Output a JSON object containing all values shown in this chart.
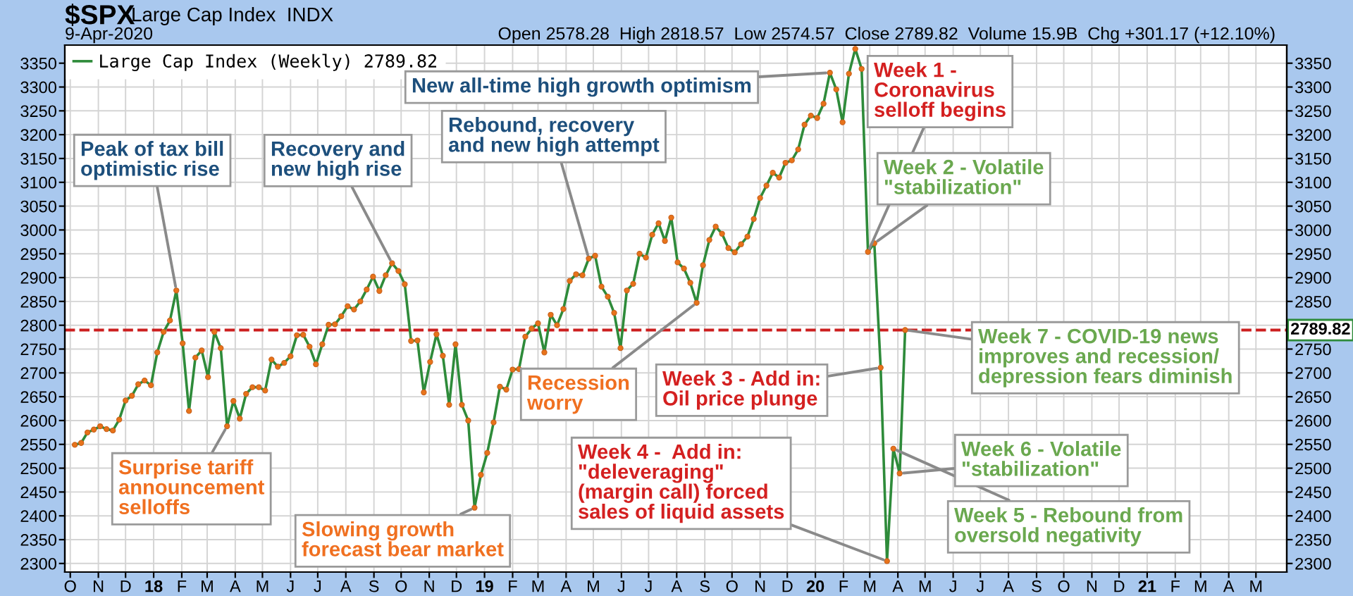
{
  "chart_data": {
    "type": "line",
    "title": "$SPX",
    "subtitle": "Large Cap Index  INDX",
    "x": [
      "2017-10-06",
      "2017-10-13",
      "2017-10-20",
      "2017-10-27",
      "2017-11-03",
      "2017-11-10",
      "2017-11-17",
      "2017-11-24",
      "2017-12-01",
      "2017-12-08",
      "2017-12-15",
      "2017-12-22",
      "2017-12-29",
      "2018-01-05",
      "2018-01-12",
      "2018-01-19",
      "2018-01-26",
      "2018-02-02",
      "2018-02-09",
      "2018-02-16",
      "2018-02-23",
      "2018-03-02",
      "2018-03-09",
      "2018-03-16",
      "2018-03-23",
      "2018-03-30",
      "2018-04-06",
      "2018-04-13",
      "2018-04-20",
      "2018-04-27",
      "2018-05-04",
      "2018-05-11",
      "2018-05-18",
      "2018-05-25",
      "2018-06-01",
      "2018-06-08",
      "2018-06-15",
      "2018-06-22",
      "2018-06-29",
      "2018-07-06",
      "2018-07-13",
      "2018-07-20",
      "2018-07-27",
      "2018-08-03",
      "2018-08-10",
      "2018-08-17",
      "2018-08-24",
      "2018-08-31",
      "2018-09-07",
      "2018-09-14",
      "2018-09-21",
      "2018-09-28",
      "2018-10-05",
      "2018-10-12",
      "2018-10-19",
      "2018-10-26",
      "2018-11-02",
      "2018-11-09",
      "2018-11-16",
      "2018-11-23",
      "2018-11-30",
      "2018-12-07",
      "2018-12-14",
      "2018-12-21",
      "2018-12-28",
      "2019-01-04",
      "2019-01-11",
      "2019-01-18",
      "2019-01-25",
      "2019-02-01",
      "2019-02-08",
      "2019-02-15",
      "2019-02-22",
      "2019-03-01",
      "2019-03-08",
      "2019-03-15",
      "2019-03-22",
      "2019-03-29",
      "2019-04-05",
      "2019-04-12",
      "2019-04-19",
      "2019-04-26",
      "2019-05-03",
      "2019-05-10",
      "2019-05-17",
      "2019-05-24",
      "2019-05-31",
      "2019-06-07",
      "2019-06-14",
      "2019-06-21",
      "2019-06-28",
      "2019-07-05",
      "2019-07-12",
      "2019-07-19",
      "2019-07-26",
      "2019-08-02",
      "2019-08-09",
      "2019-08-16",
      "2019-08-23",
      "2019-08-30",
      "2019-09-06",
      "2019-09-13",
      "2019-09-20",
      "2019-09-27",
      "2019-10-04",
      "2019-10-11",
      "2019-10-18",
      "2019-10-25",
      "2019-11-01",
      "2019-11-08",
      "2019-11-15",
      "2019-11-22",
      "2019-11-29",
      "2019-12-06",
      "2019-12-13",
      "2019-12-20",
      "2019-12-27",
      "2020-01-03",
      "2020-01-10",
      "2020-01-17",
      "2020-01-24",
      "2020-01-31",
      "2020-02-07",
      "2020-02-14",
      "2020-02-21",
      "2020-02-28",
      "2020-03-06",
      "2020-03-13",
      "2020-03-20",
      "2020-03-27",
      "2020-04-03",
      "2020-04-09"
    ],
    "series": [
      {
        "name": "Large Cap Index (Weekly) 2789.82",
        "color": "#2e8b3a",
        "values": [
          2549,
          2553,
          2575,
          2581,
          2588,
          2582,
          2579,
          2602,
          2642,
          2652,
          2676,
          2684,
          2674,
          2743,
          2786,
          2810,
          2873,
          2762,
          2620,
          2732,
          2747,
          2691,
          2786,
          2752,
          2588,
          2641,
          2604,
          2656,
          2670,
          2670,
          2663,
          2728,
          2713,
          2721,
          2735,
          2779,
          2780,
          2755,
          2718,
          2760,
          2801,
          2802,
          2819,
          2840,
          2833,
          2850,
          2875,
          2902,
          2872,
          2905,
          2930,
          2914,
          2886,
          2767,
          2768,
          2659,
          2723,
          2781,
          2736,
          2633,
          2760,
          2633,
          2600,
          2417,
          2486,
          2532,
          2596,
          2671,
          2665,
          2707,
          2708,
          2776,
          2793,
          2804,
          2743,
          2822,
          2800,
          2834,
          2893,
          2907,
          2905,
          2940,
          2946,
          2881,
          2860,
          2826,
          2752,
          2873,
          2887,
          2950,
          2942,
          2990,
          3014,
          2977,
          3026,
          2932,
          2919,
          2889,
          2847,
          2926,
          2979,
          3007,
          2992,
          2962,
          2953,
          2970,
          2986,
          3023,
          3067,
          3093,
          3120,
          3110,
          3141,
          3146,
          3169,
          3221,
          3240,
          3235,
          3265,
          3330,
          3295,
          3226,
          3328,
          3380,
          3338,
          2954,
          2972,
          2711,
          2305,
          2541,
          2489,
          2790
        ]
      }
    ],
    "marker": "circle",
    "line_style": "solid",
    "grid": true,
    "legend": "top left",
    "xlim": [
      "2017-09-25",
      "2021-06-04"
    ],
    "xticks": [
      {
        "value": "2017-10-01",
        "label": "O"
      },
      {
        "value": "2017-11-01",
        "label": "N"
      },
      {
        "value": "2017-12-01",
        "label": "D"
      },
      {
        "value": "2018-01-01",
        "label": "18"
      },
      {
        "value": "2018-02-01",
        "label": "F"
      },
      {
        "value": "2018-03-01",
        "label": "M"
      },
      {
        "value": "2018-04-01",
        "label": "A"
      },
      {
        "value": "2018-05-01",
        "label": "M"
      },
      {
        "value": "2018-06-01",
        "label": "J"
      },
      {
        "value": "2018-07-01",
        "label": "J"
      },
      {
        "value": "2018-08-01",
        "label": "A"
      },
      {
        "value": "2018-09-01",
        "label": "S"
      },
      {
        "value": "2018-10-01",
        "label": "O"
      },
      {
        "value": "2018-11-01",
        "label": "N"
      },
      {
        "value": "2018-12-01",
        "label": "D"
      },
      {
        "value": "2019-01-01",
        "label": "19"
      },
      {
        "value": "2019-02-01",
        "label": "F"
      },
      {
        "value": "2019-03-01",
        "label": "M"
      },
      {
        "value": "2019-04-01",
        "label": "A"
      },
      {
        "value": "2019-05-01",
        "label": "M"
      },
      {
        "value": "2019-06-01",
        "label": "J"
      },
      {
        "value": "2019-07-01",
        "label": "J"
      },
      {
        "value": "2019-08-01",
        "label": "A"
      },
      {
        "value": "2019-09-01",
        "label": "S"
      },
      {
        "value": "2019-10-01",
        "label": "O"
      },
      {
        "value": "2019-11-01",
        "label": "N"
      },
      {
        "value": "2019-12-01",
        "label": "D"
      },
      {
        "value": "2020-01-01",
        "label": "20"
      },
      {
        "value": "2020-02-01",
        "label": "F"
      },
      {
        "value": "2020-03-01",
        "label": "M"
      },
      {
        "value": "2020-04-01",
        "label": "A"
      },
      {
        "value": "2020-05-01",
        "label": "M"
      },
      {
        "value": "2020-06-01",
        "label": "J"
      },
      {
        "value": "2020-07-01",
        "label": "J"
      },
      {
        "value": "2020-08-01",
        "label": "A"
      },
      {
        "value": "2020-09-01",
        "label": "S"
      },
      {
        "value": "2020-10-01",
        "label": "O"
      },
      {
        "value": "2020-11-01",
        "label": "N"
      },
      {
        "value": "2020-12-01",
        "label": "D"
      },
      {
        "value": "2021-01-01",
        "label": "21"
      },
      {
        "value": "2021-02-01",
        "label": "F"
      },
      {
        "value": "2021-03-01",
        "label": "M"
      },
      {
        "value": "2021-04-01",
        "label": "A"
      },
      {
        "value": "2021-05-01",
        "label": "M"
      }
    ],
    "ylim": [
      2282,
      3388
    ],
    "yticks": [
      2300,
      2350,
      2400,
      2450,
      2500,
      2550,
      2600,
      2650,
      2700,
      2750,
      2800,
      2850,
      2900,
      2950,
      3000,
      3050,
      3100,
      3150,
      3200,
      3250,
      3300,
      3350
    ],
    "y2lim": [
      2282,
      3388
    ],
    "y2ticks": [
      2300,
      2350,
      2400,
      2450,
      2500,
      2550,
      2600,
      2650,
      2700,
      2750,
      2850,
      2900,
      2950,
      3000,
      3050,
      3100,
      3150,
      3200,
      3250,
      3300,
      3350
    ],
    "ref_lines": [
      {
        "axis": "y",
        "value": 2789.82,
        "label": "2789.82",
        "color": "#cc1f1f",
        "line_style": "dashed"
      }
    ],
    "annotations": [
      "9-Apr-2020",
      "Open 2578.28  High 2818.57  Low 2574.57  Close 2789.82  Volume 15.9B  Chg +301.17 (+12.10%)",
      {
        "text": "Peak of tax bill\noptimistic rise",
        "x": "2018-01-26",
        "y": 2873
      },
      {
        "text": "Recovery and\nnew high rise",
        "x": "2018-09-21",
        "y": 2930
      },
      {
        "text": "Rebound, recovery\nand new high attempt",
        "x": "2019-04-26",
        "y": 2940
      },
      {
        "text": "New all-time high growth optimism",
        "x": "2020-01-17",
        "y": 3330
      },
      {
        "text": "Week 1 -\nCoronavirus\nselloff begins",
        "x": "2020-02-28",
        "y": 2954
      },
      {
        "text": "Week 2 - Volatile\n\"stabilization\"",
        "x": "2020-03-06",
        "y": 2972
      },
      {
        "text": "Week 3 - Add in:\nOil price plunge",
        "x": "2020-03-13",
        "y": 2711
      },
      {
        "text": "Week 4 -  Add in:\n\"deleveraging\"\n(margin call) forced\nsales of liquid assets",
        "x": "2020-03-20",
        "y": 2305
      },
      {
        "text": "Week 5 - Rebound from\noversold negativity",
        "x": "2020-03-27",
        "y": 2541
      },
      {
        "text": "Week 6 - Volatile\n\"stabilization\"",
        "x": "2020-04-03",
        "y": 2489
      },
      {
        "text": "Week 7 - COVID-19 news\nimproves and recession/\ndepression fears diminish",
        "x": "2020-04-09",
        "y": 2790
      },
      {
        "text": "Recession\nworry",
        "x": "2019-08-23",
        "y": 2847
      },
      {
        "text": "Surprise tariff\nannouncement\nselloffs",
        "x": "2018-03-23",
        "y": 2588
      },
      {
        "text": "Slowing growth\nforecast bear market",
        "x": "2018-12-21",
        "y": 2417
      }
    ]
  }
}
